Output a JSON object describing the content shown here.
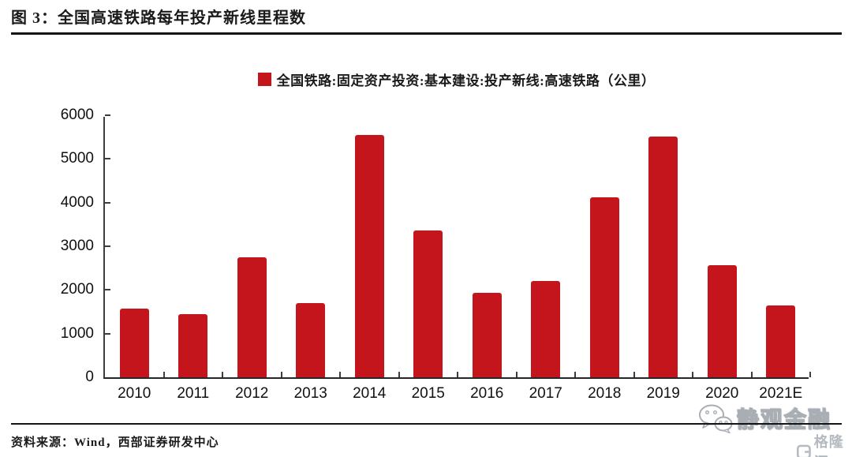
{
  "figure": {
    "title": "图 3：全国高速铁路每年投产新线里程数",
    "source_note": "资料来源：Wind，西部证券研发中心"
  },
  "legend": {
    "label": "全国铁路:固定资产投资:基本建设:投产新线:高速铁路（公里）",
    "marker_color": "#C4141C"
  },
  "watermark": {
    "wechat_account": "静观金融",
    "logo_text": "格隆汇"
  },
  "colors": {
    "bar": "#C4141C",
    "axis": "#3d3d3d",
    "rule": "#141414",
    "watermark_gray": "#a9aeb5"
  },
  "chart_data": {
    "type": "bar",
    "title": "全国高速铁路每年投产新线里程数",
    "series_name": "全国铁路:固定资产投资:基本建设:投产新线:高速铁路（公里）",
    "categories": [
      "2010",
      "2011",
      "2012",
      "2013",
      "2014",
      "2015",
      "2016",
      "2017",
      "2018",
      "2019",
      "2020",
      "2021E"
    ],
    "values": [
      1580,
      1450,
      2750,
      1700,
      5540,
      3360,
      1930,
      2210,
      4120,
      5520,
      2560,
      1650
    ],
    "xlabel": "",
    "ylabel": "",
    "ylim": [
      0,
      6000
    ],
    "yticks": [
      0,
      1000,
      2000,
      3000,
      4000,
      5000,
      6000
    ],
    "grid": false,
    "legend_position": "top-center",
    "bar_color": "#C4141C"
  }
}
